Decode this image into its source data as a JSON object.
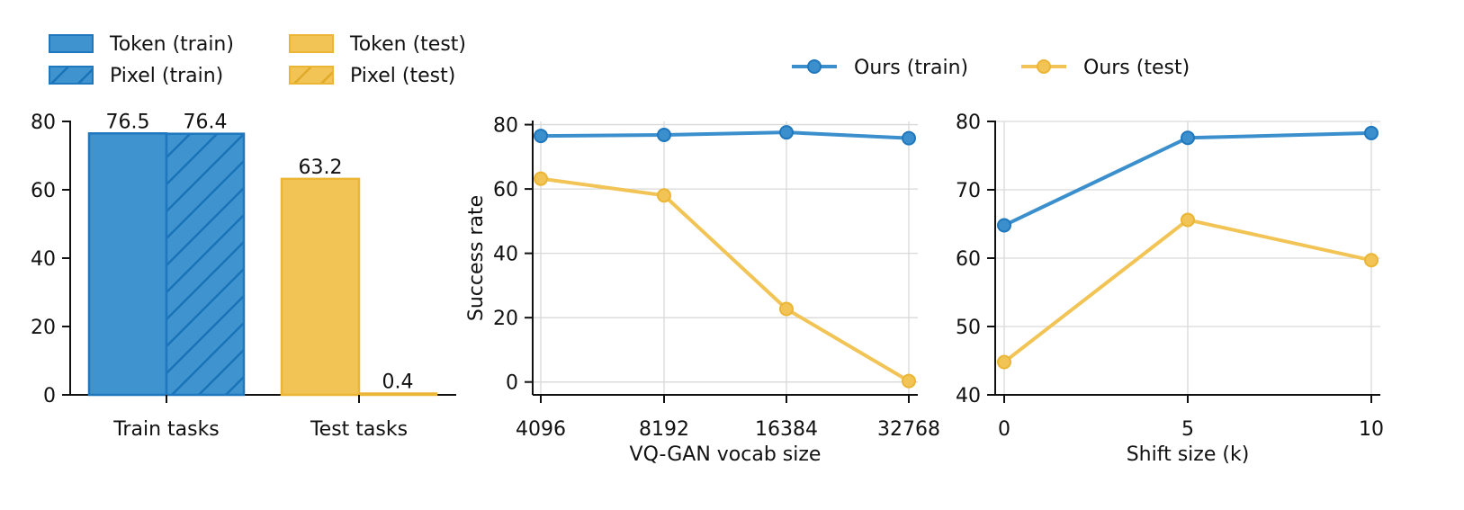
{
  "colors": {
    "train": "#2a86c8",
    "test": "#f2bd45",
    "train_edge": "#1f6fb2",
    "test_edge": "#e8b233",
    "grid": "#d9d9d9"
  },
  "legend_left": [
    {
      "label": "Token (train)",
      "color_key": "train",
      "hatch": false
    },
    {
      "label": "Pixel (train)",
      "color_key": "train",
      "hatch": true
    },
    {
      "label": "Token (test)",
      "color_key": "test",
      "hatch": false
    },
    {
      "label": "Pixel (test)",
      "color_key": "test",
      "hatch": true
    }
  ],
  "legend_right": [
    {
      "label": "Ours (train)",
      "color_key": "train"
    },
    {
      "label": "Ours (test)",
      "color_key": "test"
    }
  ],
  "chart_data": [
    {
      "type": "bar",
      "categories": [
        "Train tasks",
        "Test tasks"
      ],
      "series": [
        {
          "name": "Token (train)",
          "category": "Train tasks",
          "value": 76.5,
          "label": "76.5"
        },
        {
          "name": "Pixel (train)",
          "category": "Train tasks",
          "value": 76.4,
          "label": "76.4"
        },
        {
          "name": "Token (test)",
          "category": "Test tasks",
          "value": 63.2,
          "label": "63.2"
        },
        {
          "name": "Pixel (test)",
          "category": "Test tasks",
          "value": 0.4,
          "label": "0.4"
        }
      ],
      "ylim": [
        0,
        80
      ],
      "yticks": [
        0,
        20,
        40,
        60,
        80
      ],
      "xlabel": "",
      "ylabel": "",
      "grid": false
    },
    {
      "type": "line",
      "x": [
        "4096",
        "8192",
        "16384",
        "32768"
      ],
      "series": [
        {
          "name": "Ours (train)",
          "values": [
            76.5,
            76.8,
            77.6,
            75.8
          ]
        },
        {
          "name": "Ours (test)",
          "values": [
            63.2,
            58.0,
            22.7,
            0.3
          ]
        }
      ],
      "ylim": [
        -4,
        81
      ],
      "yticks": [
        0,
        20,
        40,
        60,
        80
      ],
      "xlabel": "VQ-GAN vocab size",
      "ylabel": "Success rate",
      "grid": true
    },
    {
      "type": "line",
      "x": [
        0,
        5,
        10
      ],
      "xticks": [
        "0",
        "5",
        "10"
      ],
      "series": [
        {
          "name": "Ours (train)",
          "values": [
            64.8,
            77.6,
            78.3
          ]
        },
        {
          "name": "Ours (test)",
          "values": [
            44.8,
            65.6,
            59.7
          ]
        }
      ],
      "ylim": [
        40,
        80
      ],
      "yticks": [
        40,
        50,
        60,
        70,
        80
      ],
      "xlabel": "Shift size (k)",
      "ylabel": "",
      "grid": true
    }
  ]
}
